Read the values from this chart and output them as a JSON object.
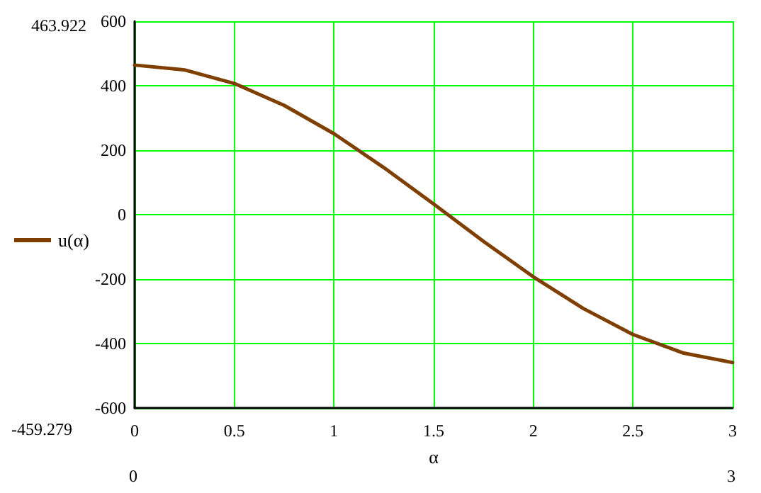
{
  "chart_data": {
    "type": "line",
    "xlabel": "α",
    "x": [
      0,
      0.25,
      0.5,
      0.75,
      1,
      1.25,
      1.5,
      1.75,
      2,
      2.25,
      2.5,
      2.75,
      3
    ],
    "series": [
      {
        "name": "u(α)",
        "color": "#7f3f00",
        "values": [
          464,
          449,
          407,
          339,
          251,
          146,
          33,
          -83,
          -193,
          -291,
          -372,
          -429,
          -459
        ]
      }
    ],
    "xlim": [
      0,
      3
    ],
    "xticks": [
      0,
      0.5,
      1,
      1.5,
      2,
      2.5,
      3
    ],
    "ylim": [
      -600,
      600
    ],
    "yticks": [
      -600,
      -400,
      -200,
      0,
      200,
      400,
      600
    ],
    "grid": true,
    "legend": "left",
    "marker": "none",
    "line_style": "solid",
    "annotations": [
      "463.922",
      "-459.279",
      "0",
      "3"
    ]
  }
}
